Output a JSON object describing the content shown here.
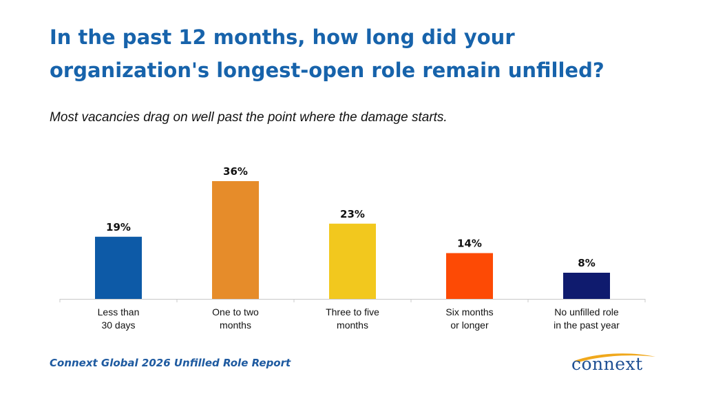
{
  "header": {
    "title": "In the past 12 months, how long did your organization's longest-open role remain unfilled?",
    "subtitle": "Most vacancies drag on well past the point where the damage starts."
  },
  "footer": {
    "source": "Connext Global 2026 Unfilled Role Report",
    "logo_text": "connext"
  },
  "chart_data": {
    "type": "bar",
    "categories": [
      [
        "Less than",
        "30 days"
      ],
      [
        "One to two",
        "months"
      ],
      [
        "Three to five",
        "months"
      ],
      [
        "Six months",
        "or longer"
      ],
      [
        "No unfilled role",
        "in the past year"
      ]
    ],
    "values": [
      19,
      36,
      23,
      14,
      8
    ],
    "data_labels": [
      "19%",
      "36%",
      "23%",
      "14%",
      "8%"
    ],
    "colors": [
      "#0d5aa7",
      "#e68c2a",
      "#f2c81e",
      "#fd4a05",
      "#0f1b6e"
    ],
    "ylim": [
      0,
      40
    ],
    "grid": false,
    "legend": "none"
  },
  "colors": {
    "title": "#1763ab",
    "footer": "#1e5aa0",
    "logo": "#1e4f93",
    "logo_swoosh": "#f0a81c"
  }
}
